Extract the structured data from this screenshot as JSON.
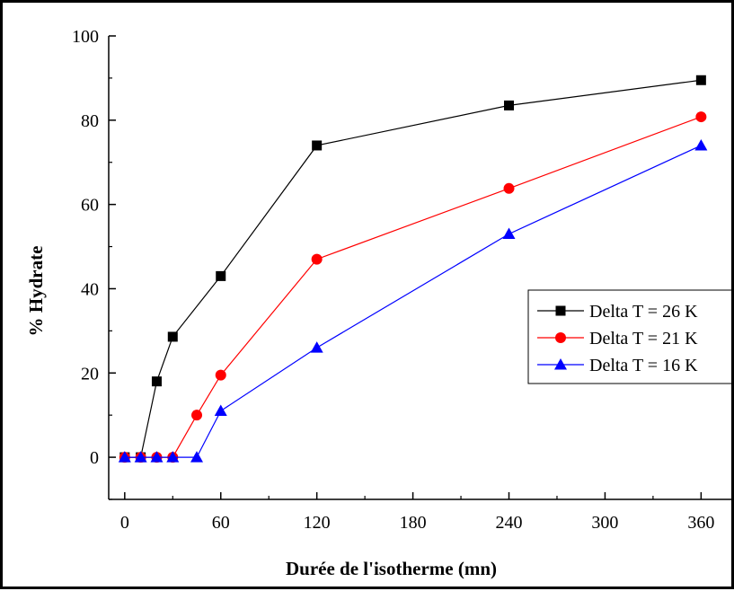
{
  "chart_data": {
    "type": "line",
    "xlabel": "Durée de l'isotherme (mn)",
    "ylabel": "% Hydrate",
    "xlim": [
      -10,
      380
    ],
    "ylim": [
      -10,
      100
    ],
    "x_ticks": [
      0,
      60,
      120,
      180,
      240,
      300,
      360
    ],
    "x_tick_labels": [
      "0",
      "60",
      "120",
      "180",
      "240",
      "300",
      "360"
    ],
    "y_ticks": [
      0,
      20,
      40,
      60,
      80,
      100
    ],
    "y_tick_labels": [
      "0",
      "20",
      "40",
      "60",
      "80",
      "100"
    ],
    "grid": false,
    "legend_position": "right",
    "series": [
      {
        "name": "Delta T = 26 K",
        "marker": "square",
        "color": "#000000",
        "x": [
          0,
          10,
          20,
          30,
          60,
          120,
          240,
          360
        ],
        "y": [
          0,
          0,
          18,
          28.6,
          43,
          74,
          83.5,
          89.5
        ]
      },
      {
        "name": "Delta T = 21 K",
        "marker": "circle",
        "color": "#ff0000",
        "x": [
          0,
          10,
          20,
          30,
          45,
          60,
          120,
          240,
          360
        ],
        "y": [
          0,
          0,
          0,
          0,
          10,
          19.5,
          47,
          63.8,
          80.8
        ]
      },
      {
        "name": "Delta T = 16 K",
        "marker": "triangle",
        "color": "#0000ff",
        "x": [
          0,
          10,
          20,
          30,
          45,
          60,
          120,
          240,
          360
        ],
        "y": [
          0,
          0,
          0,
          0,
          0,
          11,
          26,
          53,
          74
        ]
      }
    ]
  }
}
